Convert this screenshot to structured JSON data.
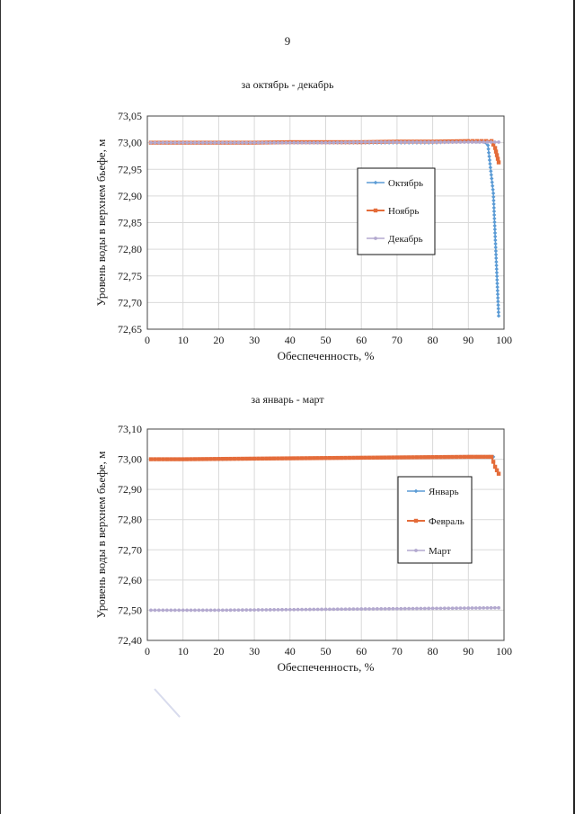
{
  "page": {
    "number": "9"
  },
  "colors": {
    "blue": "#5b9bd5",
    "orange": "#e46c3a",
    "purple": "#b3a9cf",
    "grid": "#d9d9d9",
    "axis": "#444444"
  },
  "chart_data": [
    {
      "type": "line",
      "title": "за октябрь - декабрь",
      "xlabel": "Обеспеченность, %",
      "ylabel": "Уровень воды в верхнем бьефе, м",
      "xlim": [
        0,
        100
      ],
      "ylim": [
        72.65,
        73.05
      ],
      "xticks": [
        "0",
        "10",
        "20",
        "30",
        "40",
        "50",
        "60",
        "70",
        "80",
        "90",
        "100"
      ],
      "yticks": [
        "72,65",
        "72,70",
        "72,75",
        "72,80",
        "72,85",
        "72,90",
        "72,95",
        "73,00",
        "73,05"
      ],
      "grid": true,
      "legend_position": "right",
      "series": [
        {
          "name": "Октябрь",
          "color": "#5b9bd5",
          "marker": "diamond",
          "x": [
            1,
            10,
            20,
            30,
            40,
            50,
            60,
            70,
            80,
            90,
            94,
            95.5,
            97,
            98.5
          ],
          "y": [
            73.0,
            73.0,
            73.0,
            73.0,
            73.0,
            73.0,
            73.0,
            73.0,
            73.0,
            73.002,
            73.002,
            72.995,
            72.905,
            72.675
          ]
        },
        {
          "name": "Ноябрь",
          "color": "#e46c3a",
          "marker": "square",
          "x": [
            1,
            10,
            20,
            30,
            40,
            50,
            60,
            70,
            80,
            90,
            95,
            96.5,
            97.5,
            98.5
          ],
          "y": [
            73.0,
            73.0,
            73.0,
            73.0,
            73.001,
            73.001,
            73.001,
            73.002,
            73.002,
            73.003,
            73.003,
            73.003,
            72.99,
            72.963
          ]
        },
        {
          "name": "Декабрь",
          "color": "#b3a9cf",
          "marker": "circle",
          "x": [
            1,
            10,
            20,
            30,
            40,
            50,
            60,
            70,
            80,
            90,
            98.5
          ],
          "y": [
            73.0,
            73.0,
            73.0,
            73.0,
            73.0,
            73.0,
            73.001,
            73.001,
            73.001,
            73.001,
            73.001
          ]
        }
      ]
    },
    {
      "type": "line",
      "title": "за январь - март",
      "xlabel": "Обеспеченность, %",
      "ylabel": "Уровень воды в верхнем бьефе, м",
      "xlim": [
        0,
        100
      ],
      "ylim": [
        72.4,
        73.1
      ],
      "xticks": [
        "0",
        "10",
        "20",
        "30",
        "40",
        "50",
        "60",
        "70",
        "80",
        "90",
        "100"
      ],
      "yticks": [
        "72,40",
        "72,50",
        "72,60",
        "72,70",
        "72,80",
        "72,90",
        "73,00",
        "73,10"
      ],
      "grid": true,
      "legend_position": "right",
      "series": [
        {
          "name": "Январь",
          "color": "#5b9bd5",
          "marker": "diamond",
          "x": [
            1,
            10,
            20,
            30,
            40,
            50,
            60,
            70,
            80,
            90,
            97
          ],
          "y": [
            73.0,
            73.0,
            73.0,
            73.002,
            73.003,
            73.004,
            73.005,
            73.006,
            73.007,
            73.008,
            73.008
          ]
        },
        {
          "name": "Февраль",
          "color": "#e46c3a",
          "marker": "square",
          "x": [
            1,
            10,
            20,
            30,
            40,
            50,
            60,
            70,
            80,
            90,
            96.5,
            97.5,
            98.5
          ],
          "y": [
            73.0,
            73.0,
            73.001,
            73.002,
            73.003,
            73.004,
            73.005,
            73.006,
            73.007,
            73.008,
            73.008,
            72.975,
            72.952
          ]
        },
        {
          "name": "Март",
          "color": "#b3a9cf",
          "marker": "circle",
          "x": [
            1,
            10,
            20,
            30,
            40,
            50,
            60,
            70,
            80,
            90,
            98.5
          ],
          "y": [
            72.5,
            72.5,
            72.5,
            72.501,
            72.502,
            72.503,
            72.504,
            72.505,
            72.506,
            72.507,
            72.508
          ]
        }
      ]
    }
  ]
}
